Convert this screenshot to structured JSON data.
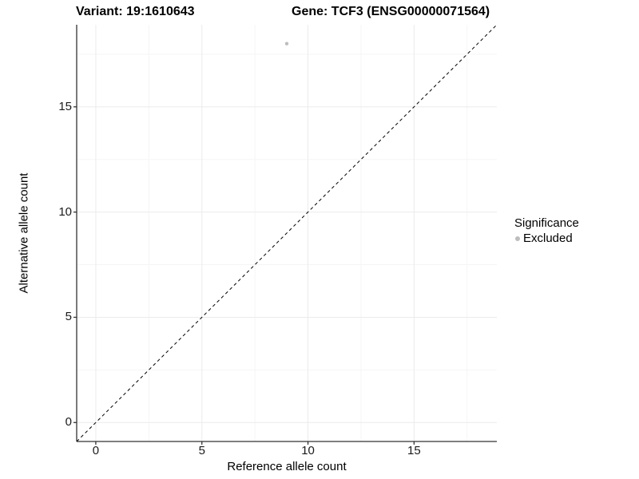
{
  "titles": {
    "variant": "Variant: 19:1610643",
    "gene": "Gene: TCF3 (ENSG00000071564)"
  },
  "legend": {
    "title": "Significance",
    "items": [
      {
        "label": "Excluded",
        "color": "#bdbdbd"
      }
    ]
  },
  "colors": {
    "axis_line": "#333333",
    "grid_major": "#ebebeb",
    "grid_minor": "#f5f5f5",
    "reference_line": "#000000",
    "point": "#bdbdbd",
    "background": "#ffffff"
  },
  "chart_data": {
    "type": "scatter",
    "title": "Variant: 19:1610643   Gene: TCF3 (ENSG00000071564)",
    "xlabel": "Reference allele count",
    "ylabel": "Alternative allele count",
    "xlim": [
      -0.9,
      18.9
    ],
    "ylim": [
      -0.9,
      18.9
    ],
    "x_ticks": [
      0,
      5,
      10,
      15
    ],
    "y_ticks": [
      0,
      5,
      10,
      15
    ],
    "x_minor_ticks": [
      2.5,
      7.5,
      12.5,
      17.5
    ],
    "y_minor_ticks": [
      2.5,
      7.5,
      12.5,
      17.5
    ],
    "grid": true,
    "legend_position": "right",
    "reference_line": {
      "type": "identity y=x",
      "style": "dashed",
      "color": "#000000"
    },
    "series": [
      {
        "name": "Excluded",
        "color": "#bdbdbd",
        "points": [
          {
            "x": 9,
            "y": 18
          }
        ]
      }
    ]
  }
}
